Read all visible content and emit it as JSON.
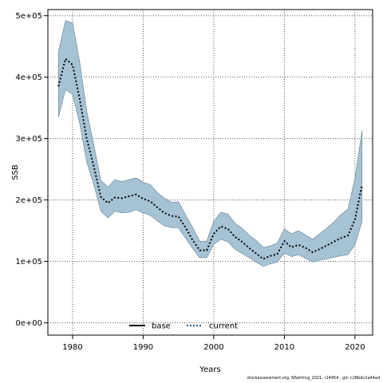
{
  "chart_data": {
    "type": "area",
    "xlabel": "Years",
    "ylabel": "SSB",
    "xlim": [
      1976.5,
      2022.5
    ],
    "ylim": [
      -20000,
      510000
    ],
    "xticks": [
      1980,
      1990,
      2000,
      2010,
      2020
    ],
    "xtick_labels": [
      "1980",
      "1990",
      "2000",
      "2010",
      "2020"
    ],
    "yticks": [
      0,
      100000,
      200000,
      300000,
      400000,
      500000
    ],
    "ytick_labels": [
      "0e+00",
      "1e+05",
      "2e+05",
      "3e+05",
      "4e+05",
      "5e+05"
    ],
    "grid": true,
    "legend_position": "bottom-center",
    "legend": [
      {
        "label": "base",
        "style": "solid",
        "color": "#000000"
      },
      {
        "label": "current",
        "style": "dotted",
        "color": "#000000",
        "marker_color": "#1f5f8b"
      }
    ],
    "x": [
      1978,
      1979,
      1980,
      1981,
      1982,
      1983,
      1984,
      1985,
      1986,
      1987,
      1988,
      1989,
      1990,
      1991,
      1992,
      1993,
      1994,
      1995,
      1996,
      1997,
      1998,
      1999,
      2000,
      2001,
      2002,
      2003,
      2004,
      2005,
      2006,
      2007,
      2008,
      2009,
      2010,
      2011,
      2012,
      2013,
      2014,
      2015,
      2016,
      2017,
      2018,
      2019,
      2020,
      2021
    ],
    "series": [
      {
        "name": "current",
        "values": [
          385000,
          430000,
          420000,
          365000,
          300000,
          255000,
          205000,
          195000,
          204000,
          203000,
          206000,
          209000,
          202000,
          198000,
          188000,
          179000,
          174000,
          173000,
          155000,
          135000,
          118000,
          118000,
          145000,
          157000,
          153000,
          140000,
          132000,
          122000,
          113000,
          104000,
          109000,
          112000,
          133000,
          123000,
          127000,
          122000,
          115000,
          120000,
          126000,
          132000,
          138000,
          142000,
          168000,
          225000
        ],
        "lower": [
          335000,
          380000,
          372000,
          325000,
          262000,
          225000,
          182000,
          171000,
          182000,
          179000,
          180000,
          184000,
          179000,
          175000,
          166000,
          158000,
          155000,
          155000,
          138000,
          121000,
          106000,
          106000,
          128000,
          136000,
          132000,
          120000,
          113000,
          106000,
          99000,
          92000,
          96000,
          99000,
          114000,
          108000,
          111000,
          105000,
          99000,
          102000,
          104000,
          107000,
          109000,
          111000,
          127000,
          165000
        ],
        "upper": [
          442000,
          492000,
          488000,
          425000,
          345000,
          290000,
          232000,
          221000,
          233000,
          230000,
          233000,
          236000,
          229000,
          225000,
          212000,
          203000,
          196000,
          197000,
          176000,
          155000,
          133000,
          133000,
          165000,
          180000,
          177000,
          162000,
          154000,
          143000,
          134000,
          123000,
          125000,
          130000,
          153000,
          145000,
          150000,
          143000,
          136000,
          145000,
          154000,
          164000,
          176000,
          185000,
          235000,
          313000
        ]
      }
    ]
  },
  "footer_text": "stockassessment.org, NSehting_2021, r14454 , git: c28bdc2a44ad",
  "colors": {
    "band_fill": "#a6c3d5",
    "band_stroke": "#6f8a9a",
    "line": "#000000",
    "grid": "#555555"
  }
}
